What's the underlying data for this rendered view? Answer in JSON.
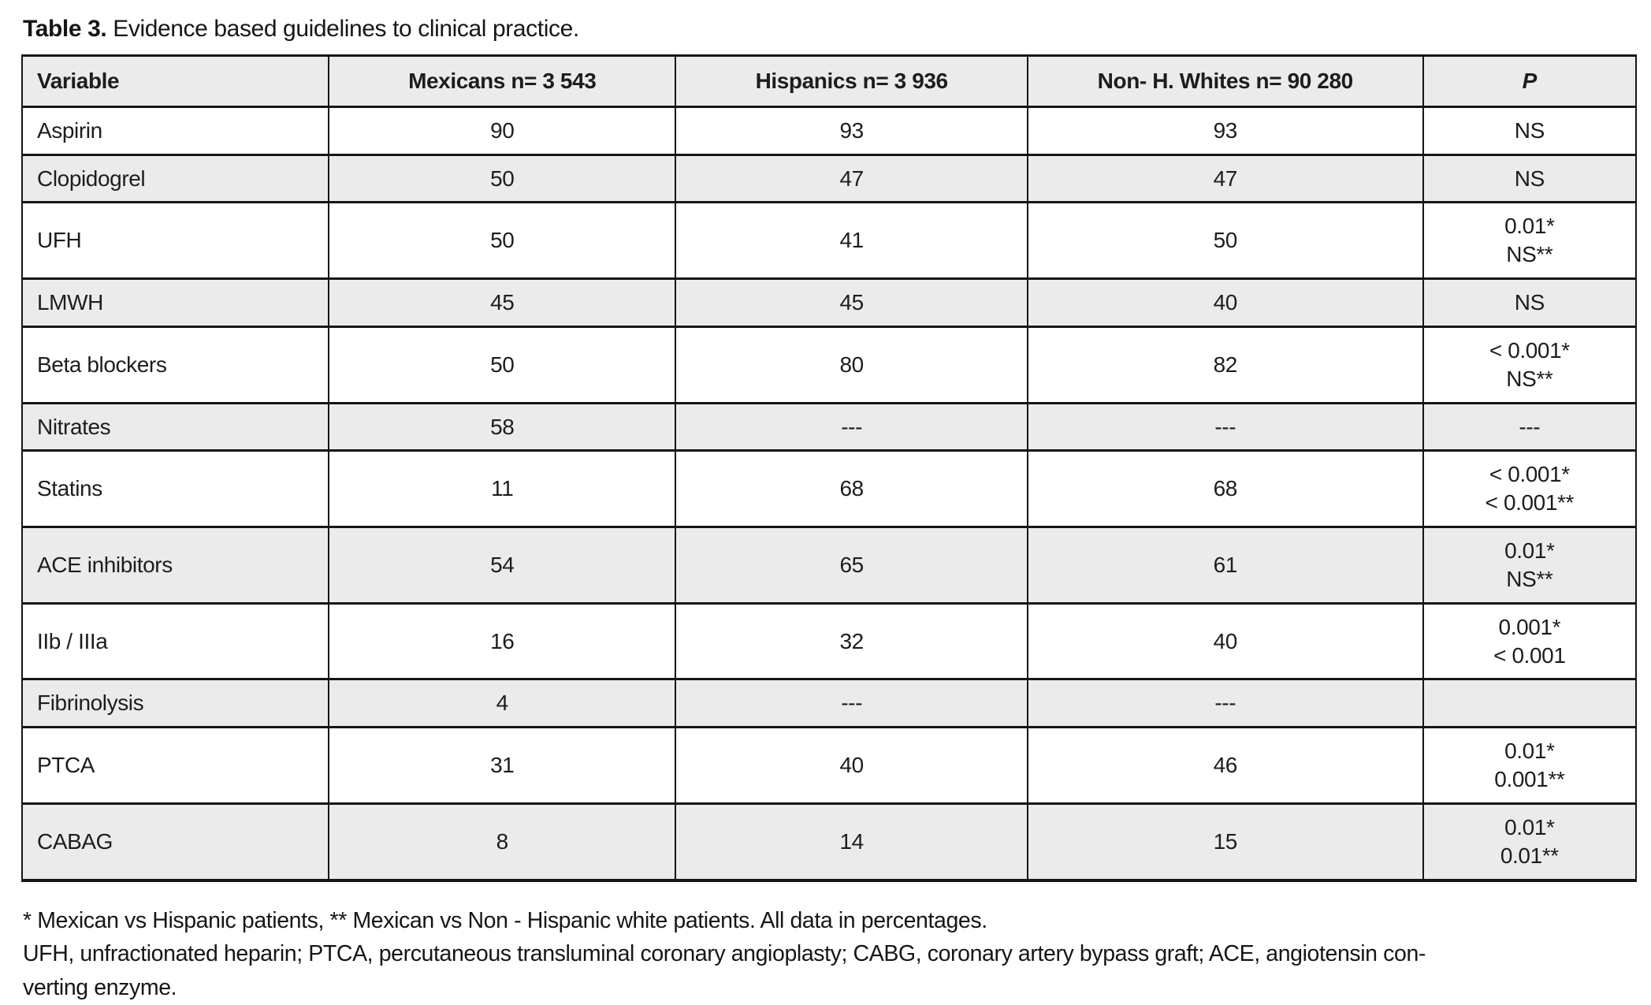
{
  "title": {
    "label": "Table 3.",
    "text": " Evidence based guidelines to clinical practice."
  },
  "table": {
    "columns": [
      "Variable",
      "Mexicans n= 3 543",
      "Hispanics n= 3 936",
      "Non- H. Whites n= 90 280",
      "P"
    ],
    "rows": [
      {
        "variable": "Aspirin",
        "mexicans": "90",
        "hispanics": "93",
        "whites": "93",
        "p": "NS"
      },
      {
        "variable": "Clopidogrel",
        "mexicans": "50",
        "hispanics": "47",
        "whites": "47",
        "p": "NS"
      },
      {
        "variable": "UFH",
        "mexicans": "50",
        "hispanics": "41",
        "whites": "50",
        "p": "0.01*\nNS**"
      },
      {
        "variable": "LMWH",
        "mexicans": "45",
        "hispanics": "45",
        "whites": "40",
        "p": "NS"
      },
      {
        "variable": "Beta blockers",
        "mexicans": "50",
        "hispanics": "80",
        "whites": "82",
        "p": "< 0.001*\nNS**"
      },
      {
        "variable": "Nitrates",
        "mexicans": "58",
        "hispanics": "---",
        "whites": "---",
        "p": "---"
      },
      {
        "variable": "Statins",
        "mexicans": "11",
        "hispanics": "68",
        "whites": "68",
        "p": "< 0.001*\n< 0.001**"
      },
      {
        "variable": "ACE inhibitors",
        "mexicans": "54",
        "hispanics": "65",
        "whites": "61",
        "p": "0.01*\nNS**"
      },
      {
        "variable": "IIb / IIIa",
        "mexicans": "16",
        "hispanics": "32",
        "whites": "40",
        "p": "0.001*\n< 0.001"
      },
      {
        "variable": "Fibrinolysis",
        "mexicans": "4",
        "hispanics": "---",
        "whites": "---",
        "p": ""
      },
      {
        "variable": "PTCA",
        "mexicans": "31",
        "hispanics": "40",
        "whites": "46",
        "p": "0.01*\n0.001**"
      },
      {
        "variable": "CABAG",
        "mexicans": "8",
        "hispanics": "14",
        "whites": "15",
        "p": "0.01*\n0.01**"
      }
    ]
  },
  "footnotes": {
    "line1": "* Mexican vs Hispanic patients, ** Mexican vs Non - Hispanic white patients. All data in percentages.",
    "line2": "UFH, unfractionated heparin; PTCA, percutaneous transluminal coronary angioplasty; CABG, coronary artery bypass graft; ACE, angiotensin con-",
    "line3": "verting enzyme."
  },
  "colors": {
    "stripe": "#ebebeb",
    "border": "#161616",
    "text": "#1d1d1d",
    "background": "#ffffff"
  }
}
